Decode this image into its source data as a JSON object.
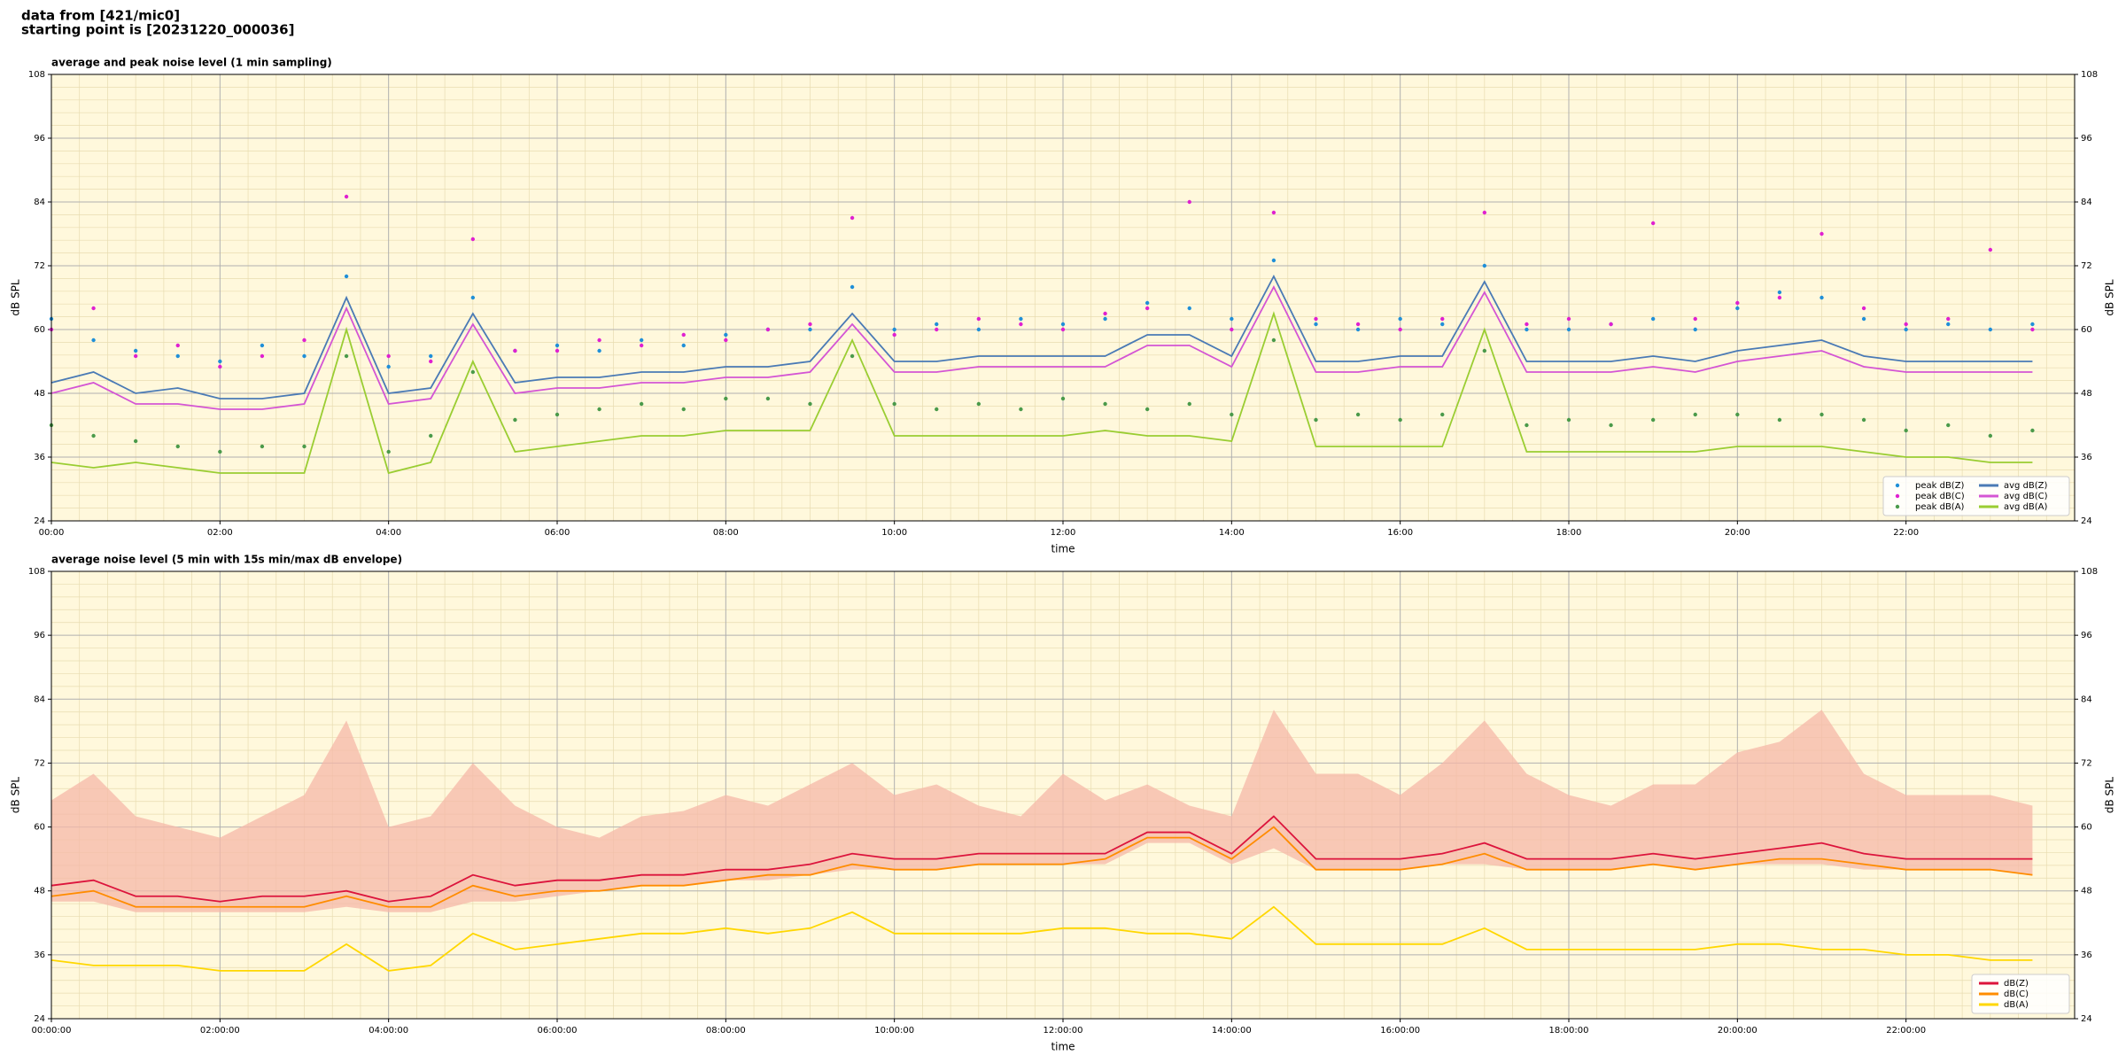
{
  "header": [
    "data from [421/mic0]",
    "starting point is [20231220_000036]"
  ],
  "chart_data": [
    {
      "type": "line",
      "title": "average and peak noise level (1 min sampling)",
      "xlabel": "time",
      "ylabel": "dB SPL",
      "xlim": [
        0,
        24
      ],
      "ylim": [
        24,
        108
      ],
      "yticks": [
        24,
        36,
        48,
        60,
        72,
        84,
        96,
        108
      ],
      "xticks": [
        {
          "value": 0,
          "label": "00:00"
        },
        {
          "value": 2,
          "label": "02:00"
        },
        {
          "value": 4,
          "label": "04:00"
        },
        {
          "value": 6,
          "label": "06:00"
        },
        {
          "value": 8,
          "label": "08:00"
        },
        {
          "value": 10,
          "label": "10:00"
        },
        {
          "value": 12,
          "label": "12:00"
        },
        {
          "value": 14,
          "label": "14:00"
        },
        {
          "value": 16,
          "label": "16:00"
        },
        {
          "value": 18,
          "label": "18:00"
        },
        {
          "value": 20,
          "label": "20:00"
        },
        {
          "value": 22,
          "label": "22:00"
        }
      ],
      "grid": true,
      "minor_grid": true,
      "background": "#fff8dc",
      "legend": "lower right",
      "x": [
        0,
        0.5,
        1,
        1.5,
        2,
        2.5,
        3,
        3.5,
        4,
        4.5,
        5,
        5.5,
        6,
        6.5,
        7,
        7.5,
        8,
        8.5,
        9,
        9.5,
        10,
        10.5,
        11,
        11.5,
        12,
        12.5,
        13,
        13.5,
        14,
        14.5,
        15,
        15.5,
        16,
        16.5,
        17,
        17.5,
        18,
        18.5,
        19,
        19.5,
        20,
        20.5,
        21,
        21.5,
        22,
        22.5,
        23,
        23.5
      ],
      "series": [
        {
          "name": "peak dB(Z)",
          "style": "scatter",
          "color": "#1f8fd8",
          "values": [
            62,
            58,
            56,
            55,
            54,
            57,
            55,
            70,
            53,
            55,
            66,
            56,
            57,
            56,
            58,
            57,
            59,
            60,
            60,
            68,
            60,
            61,
            60,
            62,
            61,
            62,
            65,
            64,
            62,
            73,
            61,
            60,
            62,
            61,
            72,
            60,
            60,
            61,
            62,
            60,
            64,
            67,
            66,
            62,
            60,
            61,
            60,
            61
          ]
        },
        {
          "name": "peak dB(C)",
          "style": "scatter",
          "color": "#e020d0",
          "values": [
            60,
            64,
            55,
            57,
            53,
            55,
            58,
            85,
            55,
            54,
            77,
            56,
            56,
            58,
            57,
            59,
            58,
            60,
            61,
            81,
            59,
            60,
            62,
            61,
            60,
            63,
            64,
            84,
            60,
            82,
            62,
            61,
            60,
            62,
            82,
            61,
            62,
            61,
            80,
            62,
            65,
            66,
            78,
            64,
            61,
            62,
            75,
            60
          ]
        },
        {
          "name": "peak dB(A)",
          "style": "scatter",
          "color": "#4a9a4a",
          "values": [
            42,
            40,
            39,
            38,
            37,
            38,
            38,
            55,
            37,
            40,
            52,
            43,
            44,
            45,
            46,
            45,
            47,
            47,
            46,
            55,
            46,
            45,
            46,
            45,
            47,
            46,
            45,
            46,
            44,
            58,
            43,
            44,
            43,
            44,
            56,
            42,
            43,
            42,
            43,
            44,
            44,
            43,
            44,
            43,
            41,
            42,
            40,
            41
          ]
        },
        {
          "name": "avg dB(Z)",
          "style": "line",
          "color": "#4a7ab5",
          "values": [
            50,
            52,
            48,
            49,
            47,
            47,
            48,
            66,
            48,
            49,
            63,
            50,
            51,
            51,
            52,
            52,
            53,
            53,
            54,
            63,
            54,
            54,
            55,
            55,
            55,
            55,
            59,
            59,
            55,
            70,
            54,
            54,
            55,
            55,
            69,
            54,
            54,
            54,
            55,
            54,
            56,
            57,
            58,
            55,
            54,
            54,
            54,
            54
          ]
        },
        {
          "name": "avg dB(C)",
          "style": "line",
          "color": "#d455d4",
          "values": [
            48,
            50,
            46,
            46,
            45,
            45,
            46,
            64,
            46,
            47,
            61,
            48,
            49,
            49,
            50,
            50,
            51,
            51,
            52,
            61,
            52,
            52,
            53,
            53,
            53,
            53,
            57,
            57,
            53,
            68,
            52,
            52,
            53,
            53,
            67,
            52,
            52,
            52,
            53,
            52,
            54,
            55,
            56,
            53,
            52,
            52,
            52,
            52
          ]
        },
        {
          "name": "avg dB(A)",
          "style": "line",
          "color": "#9acd32",
          "values": [
            35,
            34,
            35,
            34,
            33,
            33,
            33,
            60,
            33,
            35,
            54,
            37,
            38,
            39,
            40,
            40,
            41,
            41,
            41,
            58,
            40,
            40,
            40,
            40,
            40,
            41,
            40,
            40,
            39,
            63,
            38,
            38,
            38,
            38,
            60,
            37,
            37,
            37,
            37,
            37,
            38,
            38,
            38,
            37,
            36,
            36,
            35,
            35
          ]
        }
      ]
    },
    {
      "type": "line",
      "title": "average noise level (5 min with 15s min/max dB envelope)",
      "xlabel": "time",
      "ylabel": "dB SPL",
      "xlim": [
        0,
        24
      ],
      "ylim": [
        24,
        108
      ],
      "yticks": [
        24,
        36,
        48,
        60,
        72,
        84,
        96,
        108
      ],
      "xticks": [
        {
          "value": 0,
          "label": "00:00:00"
        },
        {
          "value": 2,
          "label": "02:00:00"
        },
        {
          "value": 4,
          "label": "04:00:00"
        },
        {
          "value": 6,
          "label": "06:00:00"
        },
        {
          "value": 8,
          "label": "08:00:00"
        },
        {
          "value": 10,
          "label": "10:00:00"
        },
        {
          "value": 12,
          "label": "12:00:00"
        },
        {
          "value": 14,
          "label": "14:00:00"
        },
        {
          "value": 16,
          "label": "16:00:00"
        },
        {
          "value": 18,
          "label": "18:00:00"
        },
        {
          "value": 20,
          "label": "20:00:00"
        },
        {
          "value": 22,
          "label": "22:00:00"
        }
      ],
      "grid": true,
      "minor_grid": true,
      "background": "#fff8dc",
      "legend": "lower right",
      "x": [
        0,
        0.5,
        1,
        1.5,
        2,
        2.5,
        3,
        3.5,
        4,
        4.5,
        5,
        5.5,
        6,
        6.5,
        7,
        7.5,
        8,
        8.5,
        9,
        9.5,
        10,
        10.5,
        11,
        11.5,
        12,
        12.5,
        13,
        13.5,
        14,
        14.5,
        15,
        15.5,
        16,
        16.5,
        17,
        17.5,
        18,
        18.5,
        19,
        19.5,
        20,
        20.5,
        21,
        21.5,
        22,
        22.5,
        23,
        23.5
      ],
      "series": [
        {
          "name": "dB(Z)",
          "style": "line",
          "color": "#dc143c",
          "envelope_color": "#f5b8a8",
          "envelope_min": [
            46,
            46,
            44,
            44,
            44,
            44,
            44,
            45,
            44,
            44,
            46,
            46,
            47,
            48,
            49,
            49,
            50,
            50,
            51,
            52,
            52,
            52,
            53,
            53,
            53,
            53,
            57,
            57,
            53,
            56,
            52,
            52,
            52,
            53,
            53,
            52,
            52,
            52,
            53,
            52,
            53,
            53,
            53,
            52,
            52,
            52,
            52,
            51
          ],
          "envelope_max": [
            65,
            70,
            62,
            60,
            58,
            62,
            66,
            80,
            60,
            62,
            72,
            64,
            60,
            58,
            62,
            63,
            66,
            64,
            68,
            72,
            66,
            68,
            64,
            62,
            70,
            65,
            68,
            64,
            62,
            82,
            70,
            70,
            66,
            72,
            80,
            70,
            66,
            64,
            68,
            68,
            74,
            76,
            82,
            70,
            66,
            66,
            66,
            64
          ],
          "values": [
            49,
            50,
            47,
            47,
            46,
            47,
            47,
            48,
            46,
            47,
            51,
            49,
            50,
            50,
            51,
            51,
            52,
            52,
            53,
            55,
            54,
            54,
            55,
            55,
            55,
            55,
            59,
            59,
            55,
            62,
            54,
            54,
            54,
            55,
            57,
            54,
            54,
            54,
            55,
            54,
            55,
            56,
            57,
            55,
            54,
            54,
            54,
            54
          ]
        },
        {
          "name": "dB(C)",
          "style": "line",
          "color": "#ff8c00",
          "values": [
            47,
            48,
            45,
            45,
            45,
            45,
            45,
            47,
            45,
            45,
            49,
            47,
            48,
            48,
            49,
            49,
            50,
            51,
            51,
            53,
            52,
            52,
            53,
            53,
            53,
            54,
            58,
            58,
            54,
            60,
            52,
            52,
            52,
            53,
            55,
            52,
            52,
            52,
            53,
            52,
            53,
            54,
            54,
            53,
            52,
            52,
            52,
            51
          ]
        },
        {
          "name": "dB(A)",
          "style": "line",
          "color": "#ffd700",
          "values": [
            35,
            34,
            34,
            34,
            33,
            33,
            33,
            38,
            33,
            34,
            40,
            37,
            38,
            39,
            40,
            40,
            41,
            40,
            41,
            44,
            40,
            40,
            40,
            40,
            41,
            41,
            40,
            40,
            39,
            45,
            38,
            38,
            38,
            38,
            41,
            37,
            37,
            37,
            37,
            37,
            38,
            38,
            37,
            37,
            36,
            36,
            35,
            35
          ]
        }
      ]
    }
  ]
}
